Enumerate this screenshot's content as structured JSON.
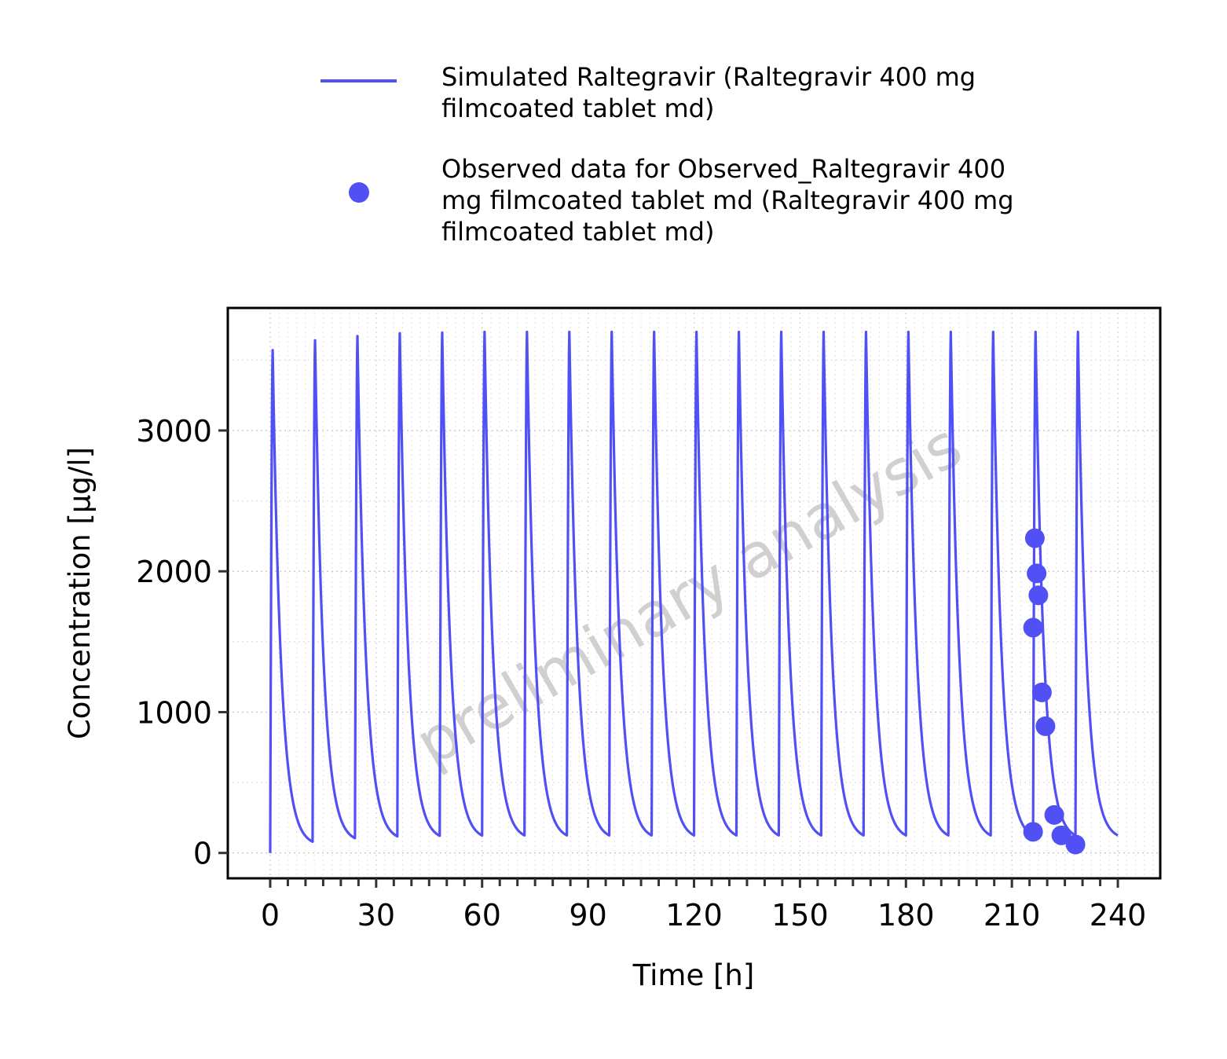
{
  "legend": {
    "items": [
      {
        "label_lines": [
          "Simulated Raltegravir (Raltegravir 400 mg",
          "filmcoated tablet md)"
        ],
        "marker": "line"
      },
      {
        "label_lines": [
          "Observed data for Observed_Raltegravir 400",
          "mg filmcoated tablet md (Raltegravir 400 mg",
          "filmcoated tablet md)"
        ],
        "marker": "point"
      }
    ]
  },
  "watermark": "preliminary analysis",
  "chart_data": {
    "type": "line",
    "xlabel": "Time [h]",
    "ylabel": "Concentration [µg/l]",
    "xlim": [
      -12,
      252
    ],
    "ylim": [
      -180,
      3870
    ],
    "xticks": [
      0,
      30,
      60,
      90,
      120,
      150,
      180,
      210,
      240
    ],
    "xtick_labels": [
      "0",
      "30",
      "60",
      "90",
      "120",
      "150",
      "180",
      "210",
      "240"
    ],
    "yticks": [
      0,
      1000,
      2000,
      3000
    ],
    "ytick_labels": [
      "0",
      "1000",
      "2000",
      "3000"
    ],
    "x_minor_step": 5,
    "grid": true,
    "series_color": "#5050f5",
    "simulated": {
      "name": "Simulated Raltegravir (Raltegravir 400 mg filmcoated tablet md)",
      "dose_interval_h": 12,
      "n_doses": 20,
      "end_time_h": 240,
      "peak_time_after_dose_h": 0.7,
      "peaks": [
        3570,
        3640,
        3670,
        3690,
        3695,
        3700,
        3700,
        3700,
        3700,
        3700,
        3700,
        3700,
        3700,
        3700,
        3700,
        3700,
        3700,
        3700,
        3700,
        3700
      ],
      "troughs": [
        80,
        105,
        118,
        122,
        124,
        125,
        125,
        125,
        125,
        125,
        125,
        125,
        125,
        125,
        125,
        125,
        125,
        125,
        125,
        125
      ]
    },
    "observed": {
      "name": "Observed data for Observed_Raltegravir 400 mg filmcoated tablet md (Raltegravir 400 mg filmcoated tablet md)",
      "points": [
        {
          "x": 216.0,
          "y": 150
        },
        {
          "x": 216.0,
          "y": 1600
        },
        {
          "x": 216.5,
          "y": 2235
        },
        {
          "x": 217.0,
          "y": 1985
        },
        {
          "x": 217.5,
          "y": 1830
        },
        {
          "x": 218.5,
          "y": 1140
        },
        {
          "x": 219.5,
          "y": 900
        },
        {
          "x": 222.0,
          "y": 270
        },
        {
          "x": 224.0,
          "y": 125
        },
        {
          "x": 228.0,
          "y": 60
        }
      ]
    }
  }
}
